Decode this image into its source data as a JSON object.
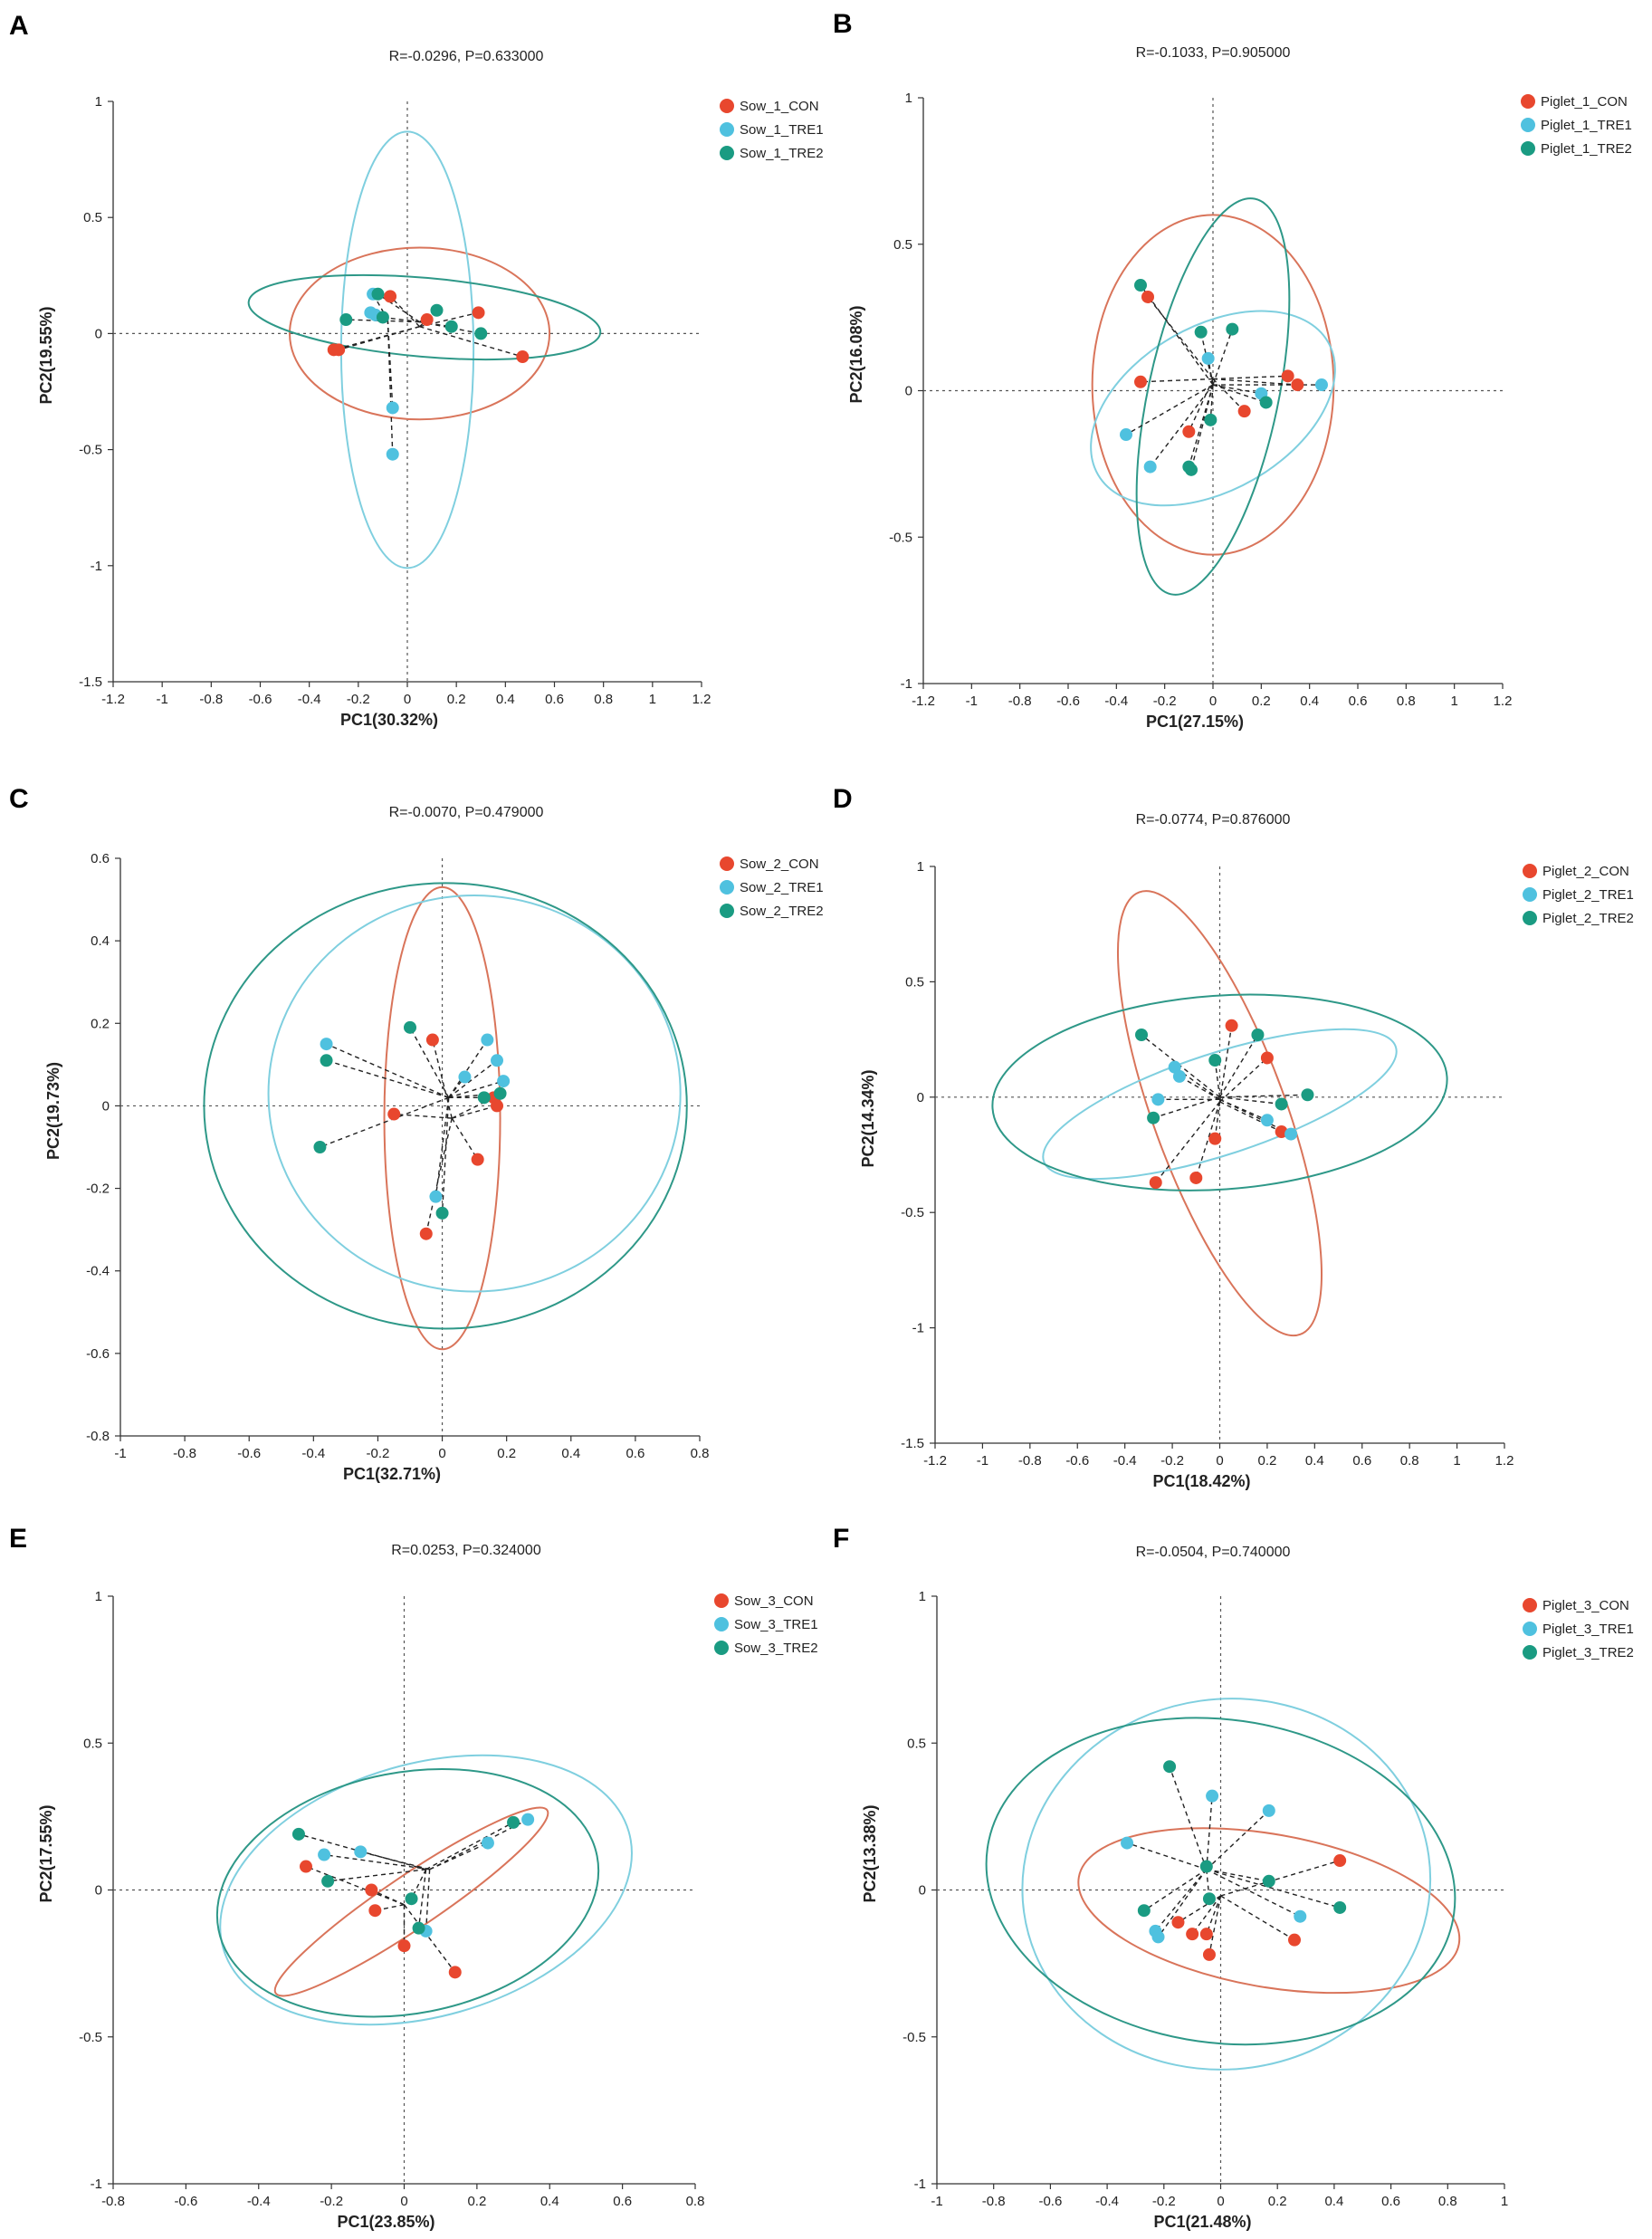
{
  "colors": {
    "CON": "#e8472e",
    "TRE1": "#4fc1df",
    "TRE2": "#1a9b82",
    "ellipse_CON": "#d9745a",
    "ellipse_TRE1": "#7fcfdf",
    "ellipse_TRE2": "#2e9888"
  },
  "chart_data": [
    {
      "letter": "A",
      "type": "scatter",
      "title": "R=-0.0296, P=0.633000",
      "xlabel": "PC1(30.32%)",
      "ylabel": "PC2(19.55%)",
      "xlim": [
        -1.2,
        1.2
      ],
      "ylim": [
        -1.5,
        1
      ],
      "xticks": [
        -1.2,
        -1,
        -0.8,
        -0.6,
        -0.4,
        -0.2,
        0,
        0.2,
        0.4,
        0.6,
        0.8,
        1,
        1.2
      ],
      "yticks": [
        -1.5,
        -1,
        -0.5,
        0,
        0.5,
        1
      ],
      "series": [
        {
          "name": "Sow_1_CON",
          "group": "CON",
          "centroid": [
            0.05,
            0.03
          ],
          "points": [
            [
              -0.3,
              -0.07
            ],
            [
              -0.28,
              -0.07
            ],
            [
              -0.07,
              0.16
            ],
            [
              0.08,
              0.06
            ],
            [
              0.29,
              0.09
            ],
            [
              0.47,
              -0.1
            ]
          ],
          "ellipse": {
            "cx": 0.05,
            "cy": 0.0,
            "rx": 0.53,
            "ry": 0.37,
            "angle": 0
          }
        },
        {
          "name": "Sow_1_TRE1",
          "group": "TRE1",
          "centroid": [
            -0.08,
            0.06
          ],
          "points": [
            [
              -0.14,
              0.17
            ],
            [
              -0.15,
              0.09
            ],
            [
              -0.13,
              0.08
            ],
            [
              -0.06,
              -0.32
            ],
            [
              -0.06,
              -0.52
            ]
          ],
          "ellipse": {
            "cx": 0.0,
            "cy": -0.07,
            "rx": 0.27,
            "ry": 0.94,
            "angle": 0
          }
        },
        {
          "name": "Sow_1_TRE2",
          "group": "TRE2",
          "centroid": [
            0.05,
            0.05
          ],
          "points": [
            [
              -0.25,
              0.06
            ],
            [
              -0.12,
              0.17
            ],
            [
              -0.1,
              0.07
            ],
            [
              0.12,
              0.1
            ],
            [
              0.18,
              0.03
            ],
            [
              0.3,
              0.0
            ]
          ],
          "ellipse": {
            "cx": 0.07,
            "cy": 0.07,
            "rx": 0.72,
            "ry": 0.17,
            "angle": -5
          }
        }
      ]
    },
    {
      "letter": "B",
      "type": "scatter",
      "title": "R=-0.1033, P=0.905000",
      "xlabel": "PC1(27.15%)",
      "ylabel": "PC2(16.08%)",
      "xlim": [
        -1.2,
        1.2
      ],
      "ylim": [
        -1,
        1
      ],
      "xticks": [
        -1.2,
        -1,
        -0.8,
        -0.6,
        -0.4,
        -0.2,
        0,
        0.2,
        0.4,
        0.6,
        0.8,
        1,
        1.2
      ],
      "yticks": [
        -1,
        -0.5,
        0,
        0.5,
        1
      ],
      "series": [
        {
          "name": "Piglet_1_CON",
          "group": "CON",
          "centroid": [
            0.0,
            0.04
          ],
          "points": [
            [
              -0.27,
              0.32
            ],
            [
              -0.3,
              0.03
            ],
            [
              -0.1,
              -0.14
            ],
            [
              0.13,
              -0.07
            ],
            [
              0.31,
              0.05
            ],
            [
              0.35,
              0.02
            ]
          ],
          "ellipse": {
            "cx": 0.0,
            "cy": 0.02,
            "rx": 0.5,
            "ry": 0.58,
            "angle": 0
          }
        },
        {
          "name": "Piglet_1_TRE1",
          "group": "TRE1",
          "centroid": [
            0.0,
            0.02
          ],
          "points": [
            [
              -0.02,
              0.11
            ],
            [
              -0.36,
              -0.15
            ],
            [
              -0.26,
              -0.26
            ],
            [
              0.2,
              -0.01
            ],
            [
              0.45,
              0.02
            ]
          ],
          "ellipse": {
            "cx": 0.0,
            "cy": -0.06,
            "rx": 0.55,
            "ry": 0.28,
            "angle": 30
          }
        },
        {
          "name": "Piglet_1_TRE2",
          "group": "TRE2",
          "centroid": [
            0.0,
            0.02
          ],
          "points": [
            [
              -0.3,
              0.36
            ],
            [
              -0.05,
              0.2
            ],
            [
              0.08,
              0.21
            ],
            [
              0.22,
              -0.04
            ],
            [
              -0.01,
              -0.1
            ],
            [
              -0.09,
              -0.27
            ],
            [
              -0.1,
              -0.26
            ]
          ],
          "ellipse": {
            "cx": 0.0,
            "cy": -0.02,
            "rx": 0.27,
            "ry": 0.69,
            "angle": -12
          }
        }
      ]
    },
    {
      "letter": "C",
      "type": "scatter",
      "title": "R=-0.0070, P=0.479000",
      "xlabel": "PC1(32.71%)",
      "ylabel": "PC2(19.73%)",
      "xlim": [
        -1,
        0.8
      ],
      "ylim": [
        -0.8,
        0.6
      ],
      "xticks": [
        -1,
        -0.8,
        -0.6,
        -0.4,
        -0.2,
        0,
        0.2,
        0.4,
        0.6,
        0.8
      ],
      "yticks": [
        -0.8,
        -0.6,
        -0.4,
        -0.2,
        0,
        0.2,
        0.4,
        0.6
      ],
      "series": [
        {
          "name": "Sow_2_CON",
          "group": "CON",
          "centroid": [
            0.03,
            -0.03
          ],
          "points": [
            [
              -0.03,
              0.16
            ],
            [
              -0.15,
              -0.02
            ],
            [
              0.16,
              0.02
            ],
            [
              0.17,
              0.0
            ],
            [
              0.11,
              -0.13
            ],
            [
              -0.05,
              -0.31
            ]
          ],
          "ellipse": {
            "cx": 0.0,
            "cy": -0.03,
            "rx": 0.18,
            "ry": 0.56,
            "angle": 0
          }
        },
        {
          "name": "Sow_2_TRE1",
          "group": "TRE1",
          "centroid": [
            0.02,
            0.02
          ],
          "points": [
            [
              -0.36,
              0.15
            ],
            [
              0.07,
              0.07
            ],
            [
              0.14,
              0.16
            ],
            [
              0.17,
              0.11
            ],
            [
              0.19,
              0.06
            ],
            [
              -0.02,
              -0.22
            ]
          ],
          "ellipse": {
            "cx": 0.1,
            "cy": 0.03,
            "rx": 0.64,
            "ry": 0.48,
            "angle": 0
          }
        },
        {
          "name": "Sow_2_TRE2",
          "group": "TRE2",
          "centroid": [
            0.02,
            0.02
          ],
          "points": [
            [
              -0.1,
              0.19
            ],
            [
              -0.36,
              0.11
            ],
            [
              -0.38,
              -0.1
            ],
            [
              0.13,
              0.02
            ],
            [
              0.18,
              0.03
            ],
            [
              0.0,
              -0.26
            ]
          ],
          "ellipse": {
            "cx": 0.01,
            "cy": 0.0,
            "rx": 0.75,
            "ry": 0.54,
            "angle": 0
          }
        }
      ]
    },
    {
      "letter": "D",
      "type": "scatter",
      "title": "R=-0.0774, P=0.876000",
      "xlabel": "PC1(18.42%)",
      "ylabel": "PC2(14.34%)",
      "xlim": [
        -1.2,
        1.2
      ],
      "ylim": [
        -1.5,
        1
      ],
      "xticks": [
        -1.2,
        -1,
        -0.8,
        -0.6,
        -0.4,
        -0.2,
        0,
        0.2,
        0.4,
        0.6,
        0.8,
        1,
        1.2
      ],
      "yticks": [
        -1.5,
        -1,
        -0.5,
        0,
        0.5,
        1
      ],
      "series": [
        {
          "name": "Piglet_2_CON",
          "group": "CON",
          "centroid": [
            0.0,
            -0.02
          ],
          "points": [
            [
              0.05,
              0.31
            ],
            [
              0.2,
              0.17
            ],
            [
              0.26,
              -0.15
            ],
            [
              -0.02,
              -0.18
            ],
            [
              -0.1,
              -0.35
            ],
            [
              -0.27,
              -0.37
            ]
          ],
          "ellipse": {
            "cx": 0.0,
            "cy": -0.07,
            "rx": 0.28,
            "ry": 1.02,
            "angle": 20
          }
        },
        {
          "name": "Piglet_2_TRE1",
          "group": "TRE1",
          "centroid": [
            0.0,
            -0.01
          ],
          "points": [
            [
              -0.19,
              0.13
            ],
            [
              -0.17,
              0.09
            ],
            [
              -0.26,
              -0.01
            ],
            [
              0.2,
              -0.1
            ],
            [
              0.3,
              -0.16
            ]
          ],
          "ellipse": {
            "cx": 0.0,
            "cy": -0.03,
            "rx": 0.78,
            "ry": 0.22,
            "angle": 18
          }
        },
        {
          "name": "Piglet_2_TRE2",
          "group": "TRE2",
          "centroid": [
            0.0,
            0.0
          ],
          "points": [
            [
              -0.33,
              0.27
            ],
            [
              -0.02,
              0.16
            ],
            [
              0.16,
              0.27
            ],
            [
              -0.28,
              -0.09
            ],
            [
              0.26,
              -0.03
            ],
            [
              0.37,
              0.01
            ]
          ],
          "ellipse": {
            "cx": 0.0,
            "cy": 0.02,
            "rx": 0.96,
            "ry": 0.42,
            "angle": 4
          }
        }
      ]
    },
    {
      "letter": "E",
      "type": "scatter",
      "title": "R=0.0253, P=0.324000",
      "xlabel": "PC1(23.85%)",
      "ylabel": "PC2(17.55%)",
      "xlim": [
        -0.8,
        0.8
      ],
      "ylim": [
        -1,
        1
      ],
      "xticks": [
        -0.8,
        -0.6,
        -0.4,
        -0.2,
        0,
        0.2,
        0.4,
        0.6,
        0.8
      ],
      "yticks": [
        -1,
        -0.5,
        0,
        0.5,
        1
      ],
      "series": [
        {
          "name": "Sow_3_CON",
          "group": "CON",
          "centroid": [
            0.0,
            -0.05
          ],
          "points": [
            [
              -0.27,
              0.08
            ],
            [
              -0.09,
              0.0
            ],
            [
              -0.08,
              -0.07
            ],
            [
              0.0,
              -0.19
            ],
            [
              0.14,
              -0.28
            ]
          ],
          "ellipse": {
            "cx": 0.02,
            "cy": -0.04,
            "rx": 0.45,
            "ry": 0.09,
            "angle": 34
          }
        },
        {
          "name": "Sow_3_TRE1",
          "group": "TRE1",
          "centroid": [
            0.07,
            0.07
          ],
          "points": [
            [
              -0.22,
              0.12
            ],
            [
              -0.12,
              0.13
            ],
            [
              0.06,
              -0.14
            ],
            [
              0.23,
              0.16
            ],
            [
              0.34,
              0.24
            ]
          ],
          "ellipse": {
            "cx": 0.06,
            "cy": 0.0,
            "rx": 0.58,
            "ry": 0.43,
            "angle": 16
          }
        },
        {
          "name": "Sow_3_TRE2",
          "group": "TRE2",
          "centroid": [
            0.06,
            0.07
          ],
          "points": [
            [
              -0.29,
              0.19
            ],
            [
              -0.21,
              0.03
            ],
            [
              0.02,
              -0.03
            ],
            [
              0.04,
              -0.13
            ],
            [
              0.3,
              0.23
            ]
          ],
          "ellipse": {
            "cx": 0.01,
            "cy": -0.01,
            "rx": 0.53,
            "ry": 0.41,
            "angle": 11
          }
        }
      ]
    },
    {
      "letter": "F",
      "type": "scatter",
      "title": "R=-0.0504, P=0.740000",
      "xlabel": "PC1(21.48%)",
      "ylabel": "PC2(13.38%)",
      "xlim": [
        -1,
        1
      ],
      "ylim": [
        -1,
        1
      ],
      "xticks": [
        -1,
        -0.8,
        -0.6,
        -0.4,
        -0.2,
        0,
        0.2,
        0.4,
        0.6,
        0.8,
        1
      ],
      "yticks": [
        -1,
        -0.5,
        0,
        0.5,
        1
      ],
      "series": [
        {
          "name": "Piglet_3_CON",
          "group": "CON",
          "centroid": [
            0.0,
            -0.02
          ],
          "points": [
            [
              -0.1,
              -0.15
            ],
            [
              -0.15,
              -0.11
            ],
            [
              -0.05,
              -0.15
            ],
            [
              -0.04,
              -0.22
            ],
            [
              0.26,
              -0.17
            ],
            [
              0.42,
              0.1
            ]
          ],
          "ellipse": {
            "cx": 0.17,
            "cy": -0.07,
            "rx": 0.68,
            "ry": 0.26,
            "angle": -10
          }
        },
        {
          "name": "Piglet_3_TRE1",
          "group": "TRE1",
          "centroid": [
            -0.05,
            0.07
          ],
          "points": [
            [
              -0.03,
              0.32
            ],
            [
              0.17,
              0.27
            ],
            [
              -0.33,
              0.16
            ],
            [
              -0.23,
              -0.14
            ],
            [
              -0.22,
              -0.16
            ],
            [
              0.28,
              -0.09
            ]
          ],
          "ellipse": {
            "cx": 0.02,
            "cy": 0.02,
            "rx": 0.72,
            "ry": 0.63,
            "angle": 8
          }
        },
        {
          "name": "Piglet_3_TRE2",
          "group": "TRE2",
          "centroid": [
            -0.05,
            0.07
          ],
          "points": [
            [
              -0.18,
              0.42
            ],
            [
              -0.27,
              -0.07
            ],
            [
              -0.05,
              0.08
            ],
            [
              -0.04,
              -0.03
            ],
            [
              0.17,
              0.03
            ],
            [
              0.42,
              -0.06
            ]
          ],
          "ellipse": {
            "cx": 0.0,
            "cy": 0.03,
            "rx": 0.83,
            "ry": 0.55,
            "angle": -8
          }
        }
      ]
    }
  ]
}
